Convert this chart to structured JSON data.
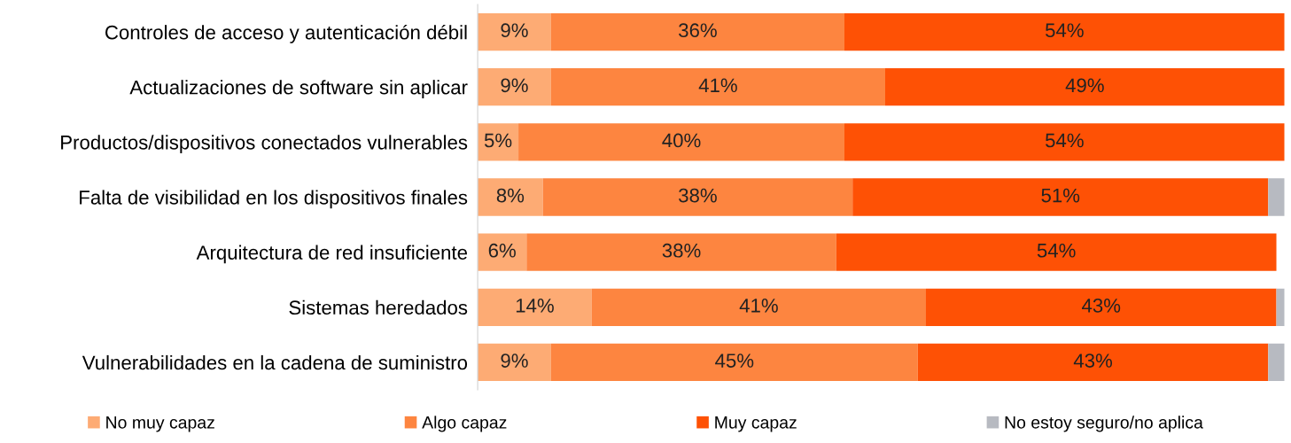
{
  "chart_data": {
    "type": "bar",
    "orientation": "horizontal",
    "stacked": true,
    "legend": "bottom",
    "grid": false,
    "categories": [
      "Controles de acceso y autenticación débil",
      "Actualizaciones de software sin aplicar",
      "Productos/dispositivos conectados vulnerables",
      "Falta de visibilidad en los dispositivos finales",
      "Arquitectura de red insuficiente",
      "Sistemas heredados",
      "Vulnerabilidades en la cadena de suministro"
    ],
    "series": [
      {
        "name": "No muy capaz",
        "color": "#fdab74",
        "values": [
          9,
          9,
          5,
          8,
          6,
          14,
          9
        ],
        "value_labels": [
          "9%",
          "9%",
          "5%",
          "8%",
          "6%",
          "14%",
          "9%"
        ]
      },
      {
        "name": "Algo capaz",
        "color": "#fd8540",
        "values": [
          36,
          41,
          40,
          38,
          38,
          41,
          45
        ],
        "value_labels": [
          "36%",
          "41%",
          "40%",
          "38%",
          "38%",
          "41%",
          "45%"
        ]
      },
      {
        "name": "Muy capaz",
        "color": "#fe5105",
        "values": [
          54,
          49,
          54,
          51,
          54,
          43,
          43
        ],
        "value_labels": [
          "54%",
          "49%",
          "54%",
          "51%",
          "54%",
          "43%",
          "43%"
        ]
      },
      {
        "name": "No estoy seguro/no aplica",
        "color": "#b7bac1",
        "values": [
          null,
          null,
          null,
          2,
          null,
          1,
          2
        ],
        "value_labels": [
          null,
          null,
          null,
          null,
          null,
          null,
          null
        ]
      }
    ]
  }
}
